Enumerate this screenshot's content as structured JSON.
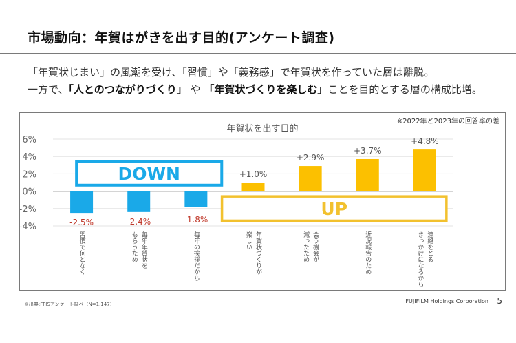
{
  "header": {
    "title": "市場動向：年賀はがきを出す目的(アンケート調査)"
  },
  "lead": {
    "line1": "「年賀状じまい」の風潮を受け、「習慣」や「義務感」で年賀状を作っていた層は離脱。",
    "line2_pre": "一方で、",
    "line2_bold1": "「人とのつながりづくり」",
    "line2_mid": " や ",
    "line2_bold2": "「年賀状づくりを楽しむ」",
    "line2_post": "ことを目的とする層の構成比増。"
  },
  "chart_note": "※2022年と2023年の回答率の差",
  "chart_data": {
    "type": "bar",
    "title": "年賀状を出す目的",
    "xlabel": "",
    "ylabel": "",
    "ylim": [
      -4,
      6
    ],
    "yticks": [
      6,
      4,
      2,
      0,
      -2,
      -4
    ],
    "ytick_labels": [
      "6%",
      "4%",
      "2%",
      "0%",
      "-2%",
      "-4%"
    ],
    "grid": true,
    "categories": [
      [
        "習慣で何となく"
      ],
      [
        "毎年年賀状を",
        "もらうため"
      ],
      [
        "毎年の挨拶だから"
      ],
      [
        "年賀状づくりが",
        "楽しい"
      ],
      [
        "会う機会が",
        "減ったため"
      ],
      [
        "近況報告のため"
      ],
      [
        "連絡をとる",
        "きっかけになるから"
      ]
    ],
    "values": [
      -2.5,
      -2.4,
      -1.8,
      1.0,
      2.9,
      3.7,
      4.8
    ],
    "data_labels": [
      "-2.5%",
      "-2.4%",
      "-1.8%",
      "+1.0%",
      "+2.9%",
      "+3.7%",
      "+4.8%"
    ],
    "annotations": [
      {
        "text": "DOWN",
        "applies_to": "negative bars"
      },
      {
        "text": "UP",
        "applies_to": "positive bars"
      }
    ],
    "colors": {
      "negative": "#1aa9e8",
      "positive": "#fcc000",
      "negative_label": "#c0392b",
      "positive_label": "#555555",
      "down_box": "#1aa9e8",
      "up_box": "#f2c12e"
    }
  },
  "footer": {
    "source": "※出典:FFISアンケート調べ（N=1,147）",
    "company": "FUJIFILM Holdings Corporation",
    "page": "5"
  }
}
